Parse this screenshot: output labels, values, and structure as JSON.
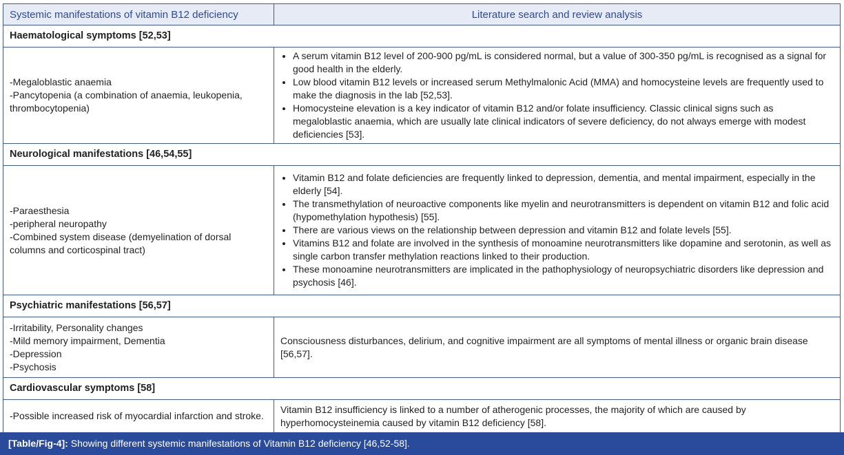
{
  "header": {
    "col1": "Systemic manifestations of vitamin B12 deficiency",
    "col2": "Literature search and review analysis"
  },
  "sections": [
    {
      "title": "Haematological symptoms [52,53]",
      "left": [
        "-Megaloblastic anaemia",
        "-Pancytopenia (a combination of anaemia, leukopenia, thrombocytopenia)"
      ],
      "right": [
        "A serum vitamin B12 level of 200-900 pg/mL is considered normal, but a value of 300-350 pg/mL is recognised as a signal for good health in the elderly.",
        "Low blood vitamin B12 levels or increased serum Methylmalonic Acid (MMA) and homocysteine levels are frequently used to make the diagnosis in the lab [52,53].",
        "Homocysteine elevation is a key indicator of vitamin B12 and/or folate insufficiency. Classic clinical signs such as megaloblastic anaemia, which are usually late clinical indicators of severe deficiency, do not always emerge with modest deficiencies [53]."
      ]
    },
    {
      "title": "Neurological manifestations [46,54,55]",
      "left": [
        "-Paraesthesia",
        "-peripheral neuropathy",
        "-Combined system disease (demyelination of dorsal columns and corticospinal tract)"
      ],
      "right": [
        "Vitamin B12 and folate deficiencies are frequently linked to depression, dementia, and mental impairment, especially in the elderly [54].",
        "The transmethylation of neuroactive components like myelin and neurotransmitters is dependent on vitamin B12 and folic acid (hypomethylation hypothesis) [55].",
        "There are various views on the relationship between depression and vitamin B12 and folate levels [55].",
        "Vitamins B12 and folate are involved in the synthesis of monoamine neurotransmitters like dopamine and serotonin, as well as single carbon transfer methylation reactions linked to their production.",
        "These monoamine neurotransmitters are implicated in the pathophysiology of neuropsychiatric disorders like depression and psychosis [46]."
      ]
    },
    {
      "title": "Psychiatric manifestations [56,57]",
      "left": [
        "-Irritability, Personality changes",
        "-Mild memory impairment, Dementia",
        "-Depression",
        "-Psychosis"
      ],
      "right_text": "Consciousness disturbances, delirium, and cognitive impairment are all symptoms of mental illness or organic brain disease [56,57]."
    },
    {
      "title": "Cardiovascular symptoms [58]",
      "left": [
        "-Possible increased risk of myocardial infarction and stroke."
      ],
      "right_text": "Vitamin B12 insufficiency is linked to a number of atherogenic processes, the majority of which are caused by hyperhomocysteinemia caused by vitamin B12 deficiency [58]."
    }
  ],
  "caption": {
    "label": "[Table/Fig-4]:",
    "text": " Showing different systemic manifestations of Vitamin B12 deficiency [46,52-58]."
  },
  "colors": {
    "accent": "#2a4b9b",
    "header_bg": "#e7ebf5",
    "border": "#3a5aa8"
  }
}
